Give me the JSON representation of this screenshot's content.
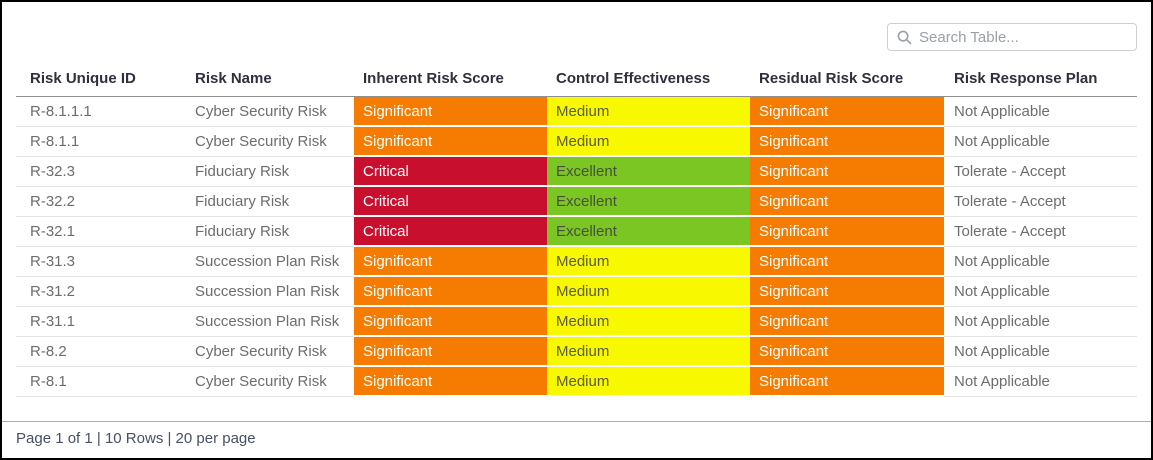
{
  "search": {
    "placeholder": "Search Table..."
  },
  "table": {
    "columns": [
      {
        "label": "Risk Unique ID"
      },
      {
        "label": "Risk Name"
      },
      {
        "label": "Inherent Risk Score"
      },
      {
        "label": "Control Effectiveness"
      },
      {
        "label": "Residual Risk Score"
      },
      {
        "label": "Risk Response Plan"
      }
    ],
    "rows": [
      {
        "id": "R-8.1.1.1",
        "name": "Cyber Security Risk",
        "inherent": "Significant",
        "control": "Medium",
        "residual": "Significant",
        "response": "Not Applicable"
      },
      {
        "id": "R-8.1.1",
        "name": "Cyber Security Risk",
        "inherent": "Significant",
        "control": "Medium",
        "residual": "Significant",
        "response": "Not Applicable"
      },
      {
        "id": "R-32.3",
        "name": "Fiduciary Risk",
        "inherent": "Critical",
        "control": "Excellent",
        "residual": "Significant",
        "response": "Tolerate - Accept"
      },
      {
        "id": "R-32.2",
        "name": "Fiduciary Risk",
        "inherent": "Critical",
        "control": "Excellent",
        "residual": "Significant",
        "response": "Tolerate - Accept"
      },
      {
        "id": "R-32.1",
        "name": "Fiduciary Risk",
        "inherent": "Critical",
        "control": "Excellent",
        "residual": "Significant",
        "response": "Tolerate - Accept"
      },
      {
        "id": "R-31.3",
        "name": "Succession Plan Risk",
        "inherent": "Significant",
        "control": "Medium",
        "residual": "Significant",
        "response": "Not Applicable"
      },
      {
        "id": "R-31.2",
        "name": "Succession Plan Risk",
        "inherent": "Significant",
        "control": "Medium",
        "residual": "Significant",
        "response": "Not Applicable"
      },
      {
        "id": "R-31.1",
        "name": "Succession Plan Risk",
        "inherent": "Significant",
        "control": "Medium",
        "residual": "Significant",
        "response": "Not Applicable"
      },
      {
        "id": "R-8.2",
        "name": "Cyber Security Risk",
        "inherent": "Significant",
        "control": "Medium",
        "residual": "Significant",
        "response": "Not Applicable"
      },
      {
        "id": "R-8.1",
        "name": "Cyber Security Risk",
        "inherent": "Significant",
        "control": "Medium",
        "residual": "Significant",
        "response": "Not Applicable"
      }
    ]
  },
  "ratings": {
    "Significant": {
      "bg": "#F57C00",
      "fg": "#FFFFFF"
    },
    "Critical": {
      "bg": "#C8102E",
      "fg": "#FFFFFF"
    },
    "Medium": {
      "bg": "#F8F800",
      "fg": "#5A5B46"
    },
    "Excellent": {
      "bg": "#7CC623",
      "fg": "#47503A"
    }
  },
  "footer": {
    "text": "Page 1 of 1 | 10 Rows | 20 per page"
  }
}
